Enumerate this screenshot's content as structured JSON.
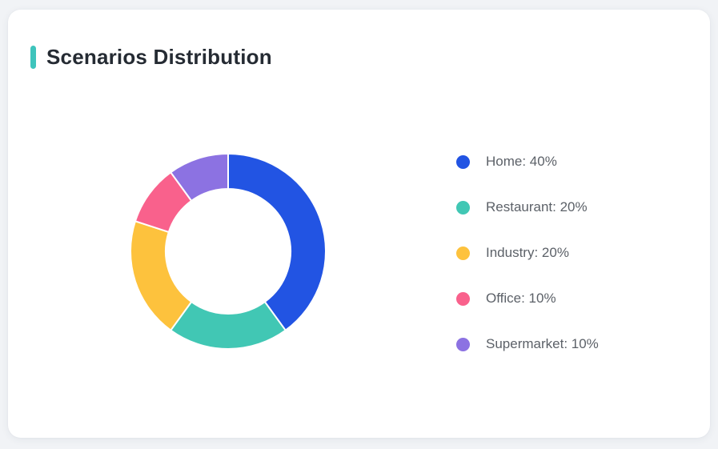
{
  "page": {
    "background_color": "#f1f3f6",
    "card_background_color": "#ffffff"
  },
  "header": {
    "title": "Scenarios Distribution",
    "accent_color": "#3ec4bc",
    "title_color": "#252b33"
  },
  "chart_data": {
    "type": "pie",
    "subtype": "donut",
    "title": "Scenarios Distribution",
    "start_angle_deg": 0,
    "direction": "clockwise",
    "inner_radius_ratio": 0.64,
    "legend_position": "right",
    "segment_border_color": "#ffffff",
    "segments": [
      {
        "label": "Home",
        "value": 40,
        "color": "#2254e3"
      },
      {
        "label": "Restaurant",
        "value": 20,
        "color": "#41c7b4"
      },
      {
        "label": "Industry",
        "value": 20,
        "color": "#fdc23d"
      },
      {
        "label": "Office",
        "value": 10,
        "color": "#f9618c"
      },
      {
        "label": "Supermarket",
        "value": 10,
        "color": "#8c72e2"
      }
    ],
    "legend_labels": [
      "Home: 40%",
      "Restaurant: 20%",
      "Industry: 20%",
      "Office: 10%",
      "Supermarket: 10%"
    ]
  }
}
